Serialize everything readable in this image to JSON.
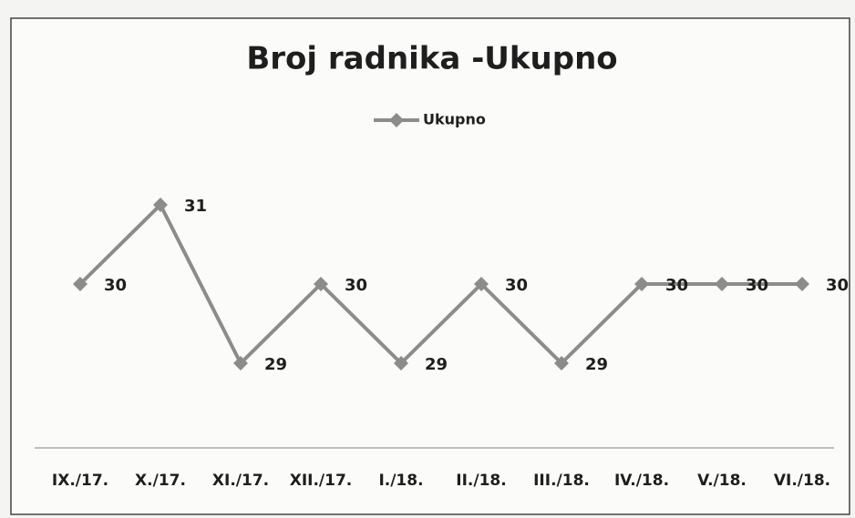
{
  "chart_data": {
    "type": "line",
    "title": "Broj radnika -Ukupno",
    "categories": [
      "IX./17.",
      "X./17.",
      "XI./17.",
      "XII./17.",
      "I./18.",
      "II./18.",
      "III./18.",
      "IV./18.",
      "V./18.",
      "VI./18."
    ],
    "series": [
      {
        "name": "Ukupno",
        "color": "#8c8c8c",
        "values": [
          30,
          31,
          29,
          30,
          29,
          30,
          29,
          30,
          30,
          30
        ]
      }
    ],
    "ylim": [
      28,
      32
    ],
    "legend": "top"
  }
}
